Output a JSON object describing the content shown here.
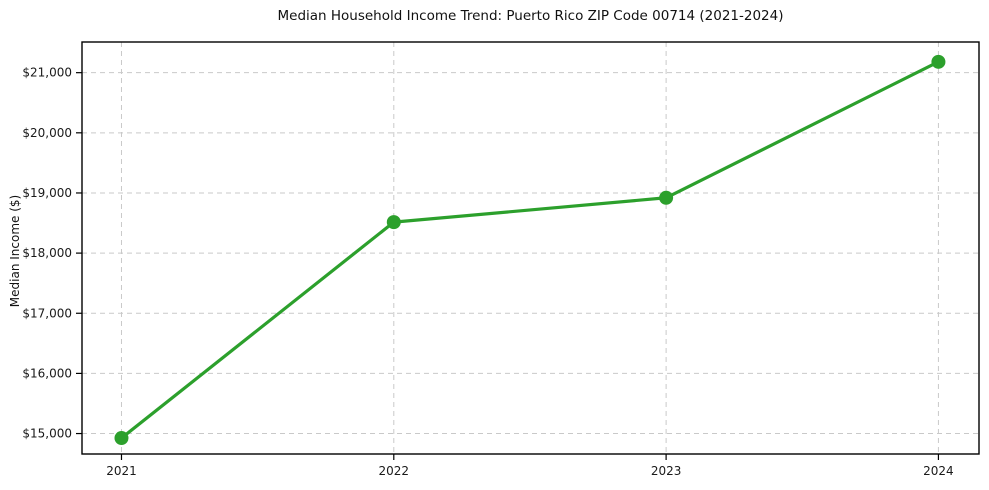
{
  "figure": {
    "background": "#ffffff"
  },
  "chart_data": {
    "type": "line",
    "title": "Median Household Income Trend: Puerto Rico ZIP Code 00714 (2021-2024)",
    "xlabel": "",
    "ylabel": "Median Income ($)",
    "x": [
      2021,
      2022,
      2023,
      2024
    ],
    "xtick_labels": [
      "2021",
      "2022",
      "2023",
      "2024"
    ],
    "series": [
      {
        "name": "Median Household Income",
        "values": [
          14925,
          18515,
          18920,
          21180
        ],
        "color": "#2ca02c",
        "marker": "circle"
      }
    ],
    "yticks": [
      15000,
      16000,
      17000,
      18000,
      19000,
      20000,
      21000
    ],
    "ytick_labels": [
      "$15,000",
      "$16,000",
      "$17,000",
      "$18,000",
      "$19,000",
      "$20,000",
      "$21,000"
    ],
    "xlim": [
      2020.855,
      2024.149
    ],
    "ylim": [
      14660,
      21510
    ],
    "grid": true,
    "legend": "none",
    "grid_color": "#c9c9c9",
    "axis_color": "#000000",
    "text_color": "#1a1a1a"
  }
}
